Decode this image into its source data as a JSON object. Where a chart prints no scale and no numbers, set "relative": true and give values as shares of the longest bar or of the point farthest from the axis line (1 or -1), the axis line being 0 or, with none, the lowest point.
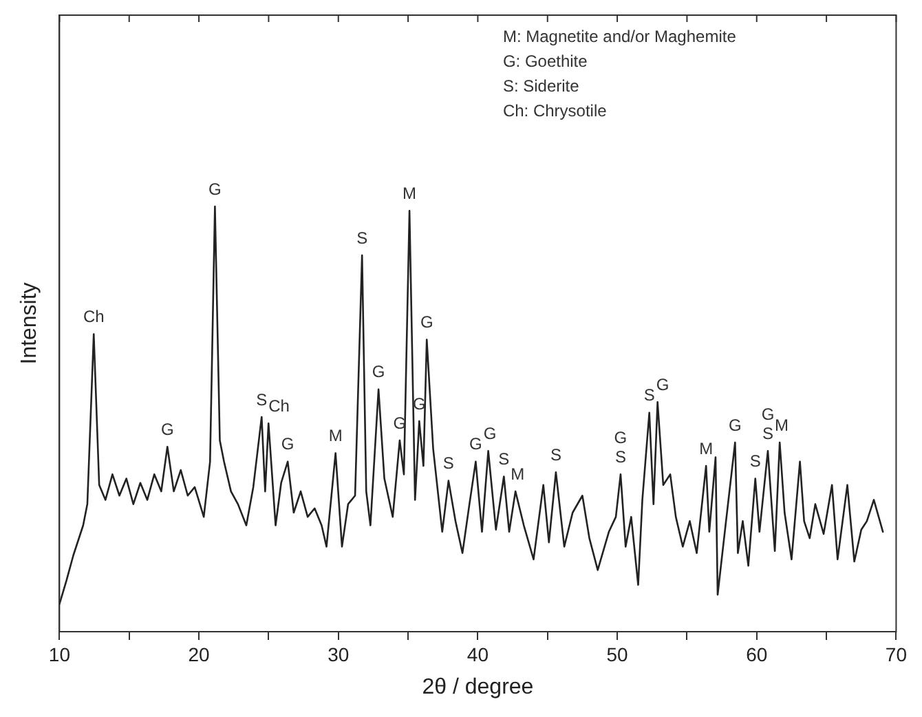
{
  "chart_data": {
    "type": "line",
    "relative": true,
    "xlabel": "2θ / degree",
    "ylabel": "Intensity",
    "xlim": [
      10,
      70
    ],
    "xticks": [
      10,
      {
        "value": 15,
        "label": null
      },
      20,
      {
        "value": 25,
        "label": null
      },
      30,
      {
        "value": 35,
        "label": null
      },
      40,
      {
        "value": 45,
        "label": null
      },
      50,
      {
        "value": 55,
        "label": null
      },
      60,
      {
        "value": 65,
        "label": null
      },
      70
    ],
    "legend": false,
    "grid": false,
    "marker": "none",
    "line_style": "solid",
    "x": [
      10,
      10.5,
      11.0,
      11.7,
      12.0,
      12.46,
      12.85,
      13.3,
      13.8,
      14.3,
      14.8,
      15.3,
      15.8,
      16.3,
      16.8,
      17.3,
      17.74,
      18.2,
      18.7,
      19.2,
      19.7,
      20.35,
      20.8,
      21.15,
      21.5,
      21.8,
      22.3,
      22.8,
      23.4,
      23.9,
      24.5,
      24.75,
      24.99,
      25.5,
      25.9,
      26.37,
      26.8,
      27.3,
      27.8,
      28.3,
      28.8,
      29.15,
      29.8,
      30.26,
      30.7,
      31.2,
      31.7,
      32.0,
      32.3,
      32.88,
      33.3,
      33.9,
      34.4,
      34.7,
      35.1,
      35.5,
      35.8,
      36.1,
      36.34,
      36.8,
      37.45,
      37.9,
      38.4,
      38.9,
      39.4,
      39.85,
      40.3,
      40.75,
      41.3,
      41.87,
      42.25,
      42.7,
      43.3,
      44.0,
      44.7,
      45.1,
      45.6,
      46.2,
      46.8,
      47.5,
      48.0,
      48.6,
      49.4,
      49.9,
      50.24,
      50.6,
      51.0,
      51.5,
      51.8,
      52.3,
      52.6,
      52.89,
      53.3,
      53.8,
      54.2,
      54.7,
      55.2,
      55.7,
      56.37,
      56.6,
      57.05,
      57.2,
      57.8,
      58.45,
      58.65,
      59.0,
      59.4,
      59.9,
      60.2,
      60.8,
      61.3,
      61.65,
      62.0,
      62.5,
      63.1,
      63.4,
      63.8,
      64.2,
      64.8,
      65.4,
      65.8,
      66.5,
      67.0,
      67.5,
      67.9,
      68.4,
      69.05
    ],
    "series": [
      {
        "color": "#222222",
        "values": [
          0.065,
          0.12,
          0.18,
          0.25,
          0.3,
          0.7,
          0.345,
          0.31,
          0.37,
          0.32,
          0.36,
          0.3,
          0.35,
          0.31,
          0.37,
          0.33,
          0.435,
          0.33,
          0.38,
          0.32,
          0.34,
          0.27,
          0.4,
          1.0,
          0.45,
          0.4,
          0.33,
          0.3,
          0.25,
          0.34,
          0.505,
          0.33,
          0.49,
          0.25,
          0.35,
          0.4,
          0.28,
          0.33,
          0.27,
          0.29,
          0.25,
          0.2,
          0.42,
          0.2,
          0.3,
          0.32,
          0.885,
          0.33,
          0.25,
          0.57,
          0.36,
          0.27,
          0.45,
          0.37,
          0.99,
          0.31,
          0.495,
          0.39,
          0.687,
          0.43,
          0.235,
          0.355,
          0.26,
          0.185,
          0.3,
          0.4,
          0.235,
          0.425,
          0.24,
          0.365,
          0.235,
          0.33,
          0.25,
          0.17,
          0.345,
          0.21,
          0.375,
          0.2,
          0.28,
          0.32,
          0.22,
          0.145,
          0.235,
          0.27,
          0.37,
          0.2,
          0.27,
          0.11,
          0.31,
          0.515,
          0.3,
          0.54,
          0.345,
          0.37,
          0.27,
          0.2,
          0.26,
          0.185,
          0.39,
          0.235,
          0.41,
          0.087,
          0.26,
          0.445,
          0.185,
          0.26,
          0.155,
          0.36,
          0.235,
          0.425,
          0.19,
          0.445,
          0.28,
          0.17,
          0.4,
          0.26,
          0.22,
          0.3,
          0.23,
          0.345,
          0.17,
          0.345,
          0.165,
          0.24,
          0.26,
          0.31,
          0.235
        ]
      }
    ],
    "annotations": [
      "M: Magnetite and/or Maghemite",
      "G: Goethite",
      "S: Siderite",
      "Ch: Chrysotile",
      {
        "text": "Ch",
        "x": 12.46,
        "y": 0.7
      },
      {
        "text": "G",
        "x": 17.74,
        "y": 0.435
      },
      {
        "text": "G",
        "x": 21.15,
        "y": 1.0
      },
      {
        "text": "S",
        "x": 24.5,
        "y": 0.505
      },
      {
        "text": "Ch",
        "x": 24.99,
        "y": 0.49
      },
      {
        "text": "G",
        "x": 26.37,
        "y": 0.4
      },
      {
        "text": "M",
        "x": 29.8,
        "y": 0.42
      },
      {
        "text": "S",
        "x": 31.7,
        "y": 0.885
      },
      {
        "text": "G",
        "x": 32.88,
        "y": 0.57
      },
      {
        "text": "G",
        "x": 34.4,
        "y": 0.45
      },
      {
        "text": "M",
        "x": 35.1,
        "y": 0.99
      },
      {
        "text": "G",
        "x": 35.8,
        "y": 0.495
      },
      {
        "text": "G",
        "x": 36.34,
        "y": 0.687
      },
      {
        "text": "S",
        "x": 37.9,
        "y": 0.355
      },
      {
        "text": "G",
        "x": 39.85,
        "y": 0.4
      },
      {
        "text": "G",
        "x": 40.75,
        "y": 0.425
      },
      {
        "text": "S",
        "x": 41.87,
        "y": 0.365
      },
      {
        "text": "M",
        "x": 42.7,
        "y": 0.33
      },
      {
        "text": "S",
        "x": 45.6,
        "y": 0.375
      },
      {
        "text": "S",
        "x": 50.24,
        "y": 0.37
      },
      {
        "text": "G",
        "x": 50.24,
        "y": 0.37
      },
      {
        "text": "S",
        "x": 52.3,
        "y": 0.515
      },
      {
        "text": "G",
        "x": 52.89,
        "y": 0.54
      },
      {
        "text": "M",
        "x": 56.37,
        "y": 0.39
      },
      {
        "text": "G",
        "x": 58.45,
        "y": 0.445
      },
      {
        "text": "S",
        "x": 59.9,
        "y": 0.36
      },
      {
        "text": "S",
        "x": 60.8,
        "y": 0.425
      },
      {
        "text": "G",
        "x": 60.8,
        "y": 0.425
      },
      {
        "text": "M",
        "x": 61.65,
        "y": 0.445
      }
    ]
  }
}
